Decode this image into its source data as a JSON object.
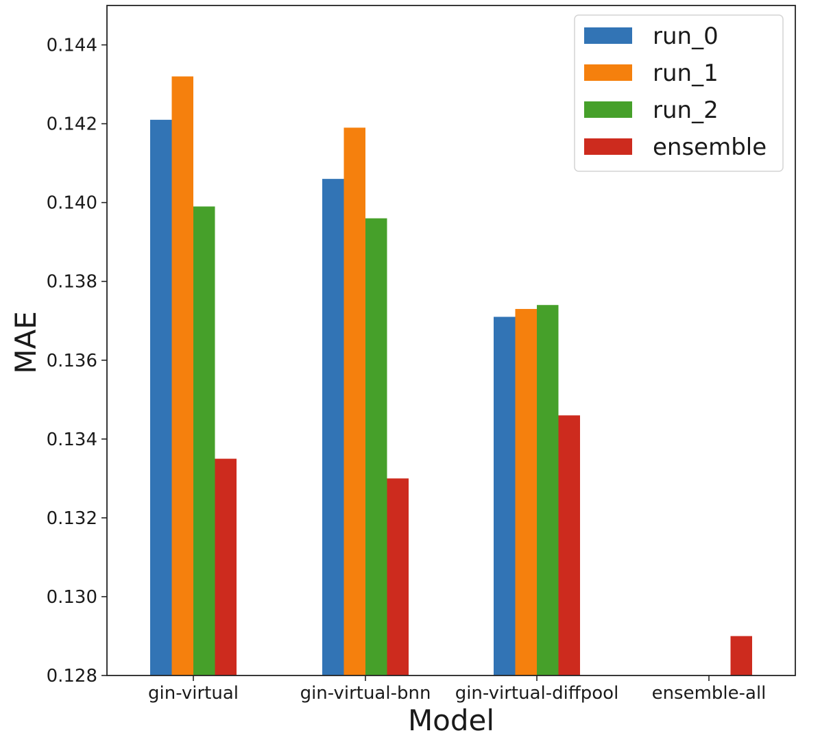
{
  "chart_data": {
    "type": "bar",
    "xlabel": "Model",
    "ylabel": "MAE",
    "ylim": [
      0.128,
      0.145
    ],
    "yticks": [
      "0.128",
      "0.130",
      "0.132",
      "0.134",
      "0.136",
      "0.138",
      "0.140",
      "0.142",
      "0.144"
    ],
    "categories": [
      "gin-virtual",
      "gin-virtual-bnn",
      "gin-virtual-diffpool",
      "ensemble-all"
    ],
    "series": [
      {
        "name": "run_0",
        "color": "#3274b5",
        "values": [
          0.1421,
          0.1406,
          0.1371,
          null
        ]
      },
      {
        "name": "run_1",
        "color": "#f5800d",
        "values": [
          0.1432,
          0.1419,
          0.1373,
          null
        ]
      },
      {
        "name": "run_2",
        "color": "#46a02a",
        "values": [
          0.1399,
          0.1396,
          0.1374,
          null
        ]
      },
      {
        "name": "ensemble",
        "color": "#cd2b1e",
        "values": [
          0.1335,
          0.133,
          0.1346,
          0.129
        ]
      }
    ],
    "legend_position": "top-right",
    "grid": false
  }
}
